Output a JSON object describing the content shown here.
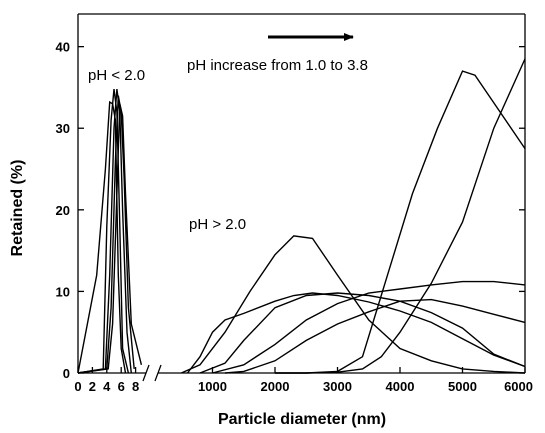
{
  "chart_data": {
    "type": "line",
    "xlabel": "Particle diameter (nm)",
    "ylabel": "Retained (%)",
    "ylim": [
      0,
      44
    ],
    "grid": false,
    "legend": "none",
    "broken_x_axis": true,
    "left_segment": {
      "xlim": [
        0,
        10
      ],
      "xticks": [
        0,
        2,
        4,
        6,
        8
      ],
      "tick_labels": [
        "0",
        "2",
        "4",
        "6",
        "8"
      ]
    },
    "right_segment": {
      "xlim": [
        0,
        6000
      ],
      "xticks": [
        1000,
        2000,
        3000,
        4000,
        5000,
        6000
      ],
      "tick_labels": [
        "1000",
        "2000",
        "3000",
        "4000",
        "5000",
        "6000"
      ]
    },
    "yticks": [
      0,
      10,
      20,
      30,
      40
    ],
    "ytick_labels": [
      "0",
      "10",
      "20",
      "30",
      "40"
    ],
    "annotations": {
      "ph_low": "pH < 2.0",
      "ph_high": "pH > 2.0",
      "arrow_text": "pH increase from 1.0 to 3.8"
    },
    "series_left": [
      {
        "x": [
          0,
          2.6,
          3.8,
          4.4,
          4.8,
          5.2,
          5.6,
          6.0,
          6.6
        ],
        "y": [
          0,
          12,
          25,
          33.2,
          33,
          31,
          12,
          3,
          0
        ]
      },
      {
        "x": [
          0,
          3.5,
          4.0,
          4.6,
          5.0,
          5.4,
          5.8,
          6.2,
          7.0
        ],
        "y": [
          0,
          0.5,
          18,
          31,
          34.8,
          32,
          18,
          3,
          0
        ]
      },
      {
        "x": [
          0,
          3.8,
          4.4,
          5.0,
          5.4,
          5.8,
          6.2,
          6.8,
          7.4
        ],
        "y": [
          0,
          0.5,
          12,
          30,
          34.8,
          32,
          20,
          5,
          0
        ]
      },
      {
        "x": [
          0,
          4.0,
          4.6,
          5.2,
          5.6,
          6.0,
          6.4,
          7.0,
          7.8
        ],
        "y": [
          0,
          0.5,
          8,
          26,
          34,
          32,
          24,
          8,
          0.5
        ]
      },
      {
        "x": [
          0,
          4.2,
          4.8,
          5.4,
          5.8,
          6.2,
          6.6,
          7.4,
          8.8
        ],
        "y": [
          0,
          0.5,
          6,
          22,
          33,
          31.5,
          22,
          6,
          1
        ]
      }
    ],
    "series_right": [
      {
        "x": [
          600,
          800,
          1000,
          1200,
          1500,
          2000,
          2300,
          2600,
          3000,
          3500,
          4000,
          4500,
          5000,
          5500,
          6000
        ],
        "y": [
          0,
          2,
          5,
          6.5,
          7.3,
          8.8,
          9.5,
          9.8,
          9.5,
          8.7,
          7.6,
          6.2,
          4.2,
          2.2,
          0.8
        ]
      },
      {
        "x": [
          500,
          800,
          1200,
          1600,
          2000,
          2300,
          2600,
          3000,
          3500,
          4000,
          4500,
          5000,
          5500,
          6000
        ],
        "y": [
          0,
          1,
          5,
          10,
          14.5,
          16.8,
          16.5,
          12,
          6.5,
          3,
          1.5,
          0.5,
          0.2,
          0
        ]
      },
      {
        "x": [
          800,
          1200,
          1500,
          2000,
          2500,
          3000,
          3500,
          4000,
          4500,
          5000,
          5500,
          6000
        ],
        "y": [
          0,
          1.2,
          4,
          8,
          9.5,
          9.8,
          9.5,
          8.8,
          7.4,
          5.5,
          2.3,
          0.8
        ]
      },
      {
        "x": [
          1000,
          1500,
          2000,
          2500,
          3000,
          3500,
          4000,
          4500,
          5000,
          5500,
          6000
        ],
        "y": [
          0,
          1,
          3.5,
          6.5,
          8.5,
          9.8,
          10.3,
          10.8,
          11.2,
          11.2,
          10.8
        ]
      },
      {
        "x": [
          1200,
          1500,
          2000,
          2500,
          3000,
          3500,
          4000,
          4500,
          5000,
          5500,
          6000
        ],
        "y": [
          0,
          0.2,
          1.5,
          4,
          6,
          7.5,
          8.8,
          9,
          8.2,
          7.2,
          6.2
        ]
      },
      {
        "x": [
          2000,
          2500,
          3000,
          3400,
          3700,
          4000,
          4500,
          5000,
          5500,
          6000
        ],
        "y": [
          0,
          0,
          0.1,
          0.5,
          2,
          5,
          11,
          18.5,
          30,
          38.5
        ]
      },
      {
        "x": [
          2000,
          2500,
          3000,
          3400,
          3800,
          4200,
          4600,
          5000,
          5200,
          5600,
          6000
        ],
        "y": [
          0,
          0,
          0.2,
          2,
          12,
          22,
          30,
          37,
          36.5,
          32,
          27.5
        ]
      }
    ]
  }
}
